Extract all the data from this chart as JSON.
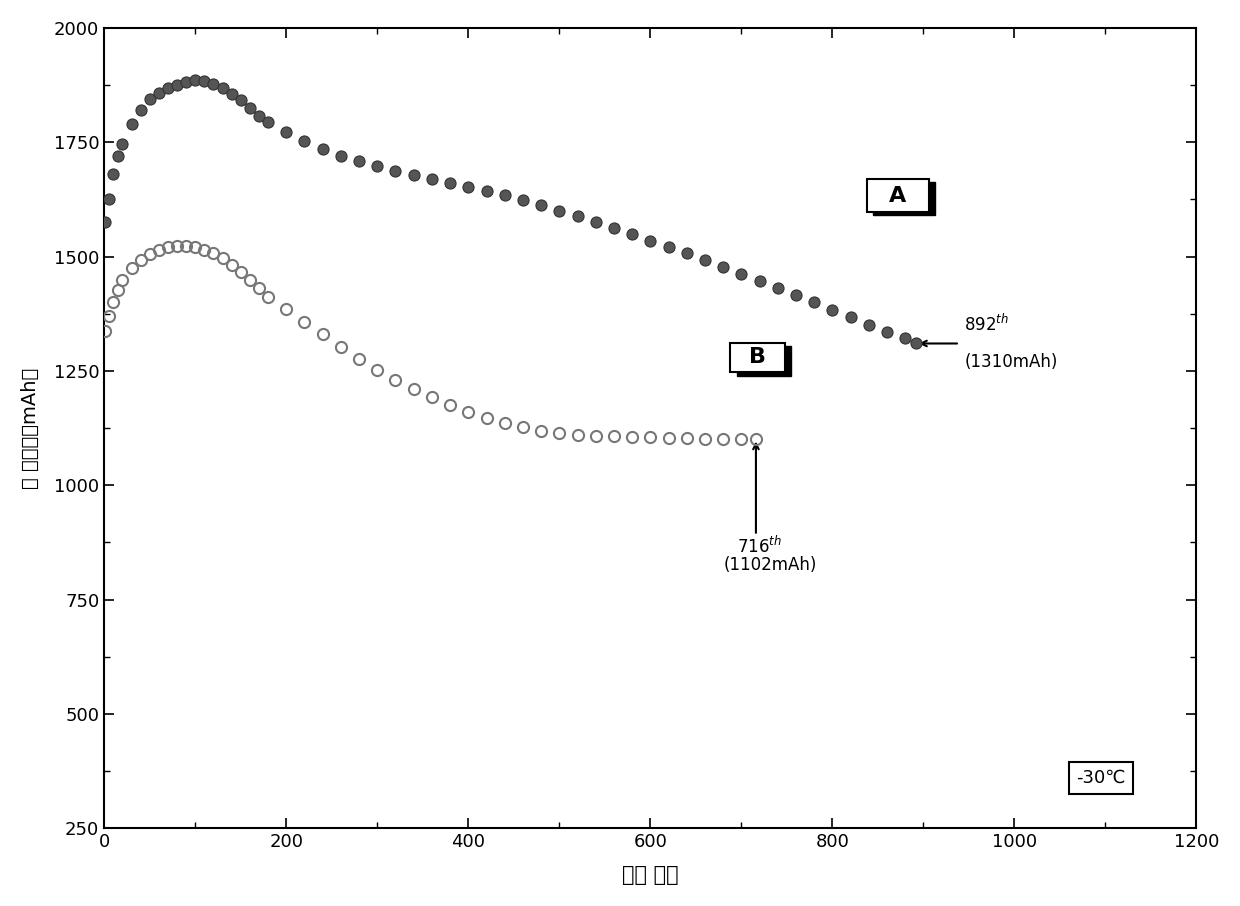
{
  "title": "",
  "xlabel": "循环 次数",
  "ylabel": "放 电容量（mAh）",
  "xlim": [
    0,
    1200
  ],
  "ylim": [
    250,
    2000
  ],
  "xticks": [
    0,
    200,
    400,
    600,
    800,
    1000,
    1200
  ],
  "yticks": [
    250,
    500,
    750,
    1000,
    1250,
    1500,
    1750,
    2000
  ],
  "background_color": "#ffffff",
  "plot_bg_color": "#ffffff",
  "temperature_label": "-30℃",
  "series_A": {
    "x": [
      1,
      5,
      10,
      15,
      20,
      30,
      40,
      50,
      60,
      70,
      80,
      90,
      100,
      110,
      120,
      130,
      140,
      150,
      160,
      170,
      180,
      200,
      220,
      240,
      260,
      280,
      300,
      320,
      340,
      360,
      380,
      400,
      420,
      440,
      460,
      480,
      500,
      520,
      540,
      560,
      580,
      600,
      620,
      640,
      660,
      680,
      700,
      720,
      740,
      760,
      780,
      800,
      820,
      840,
      860,
      880,
      892
    ],
    "y": [
      1575,
      1625,
      1680,
      1720,
      1745,
      1790,
      1820,
      1845,
      1858,
      1868,
      1876,
      1881,
      1885,
      1884,
      1878,
      1868,
      1855,
      1842,
      1825,
      1808,
      1795,
      1772,
      1752,
      1736,
      1720,
      1708,
      1697,
      1687,
      1678,
      1670,
      1661,
      1653,
      1644,
      1634,
      1623,
      1612,
      1600,
      1588,
      1575,
      1562,
      1549,
      1535,
      1521,
      1507,
      1492,
      1477,
      1462,
      1446,
      1431,
      1416,
      1400,
      1384,
      1368,
      1351,
      1336,
      1322,
      1310
    ],
    "marker": "o",
    "color": "#555555",
    "markersize": 8,
    "label": "A",
    "fillstyle": "full"
  },
  "series_B": {
    "x": [
      1,
      5,
      10,
      15,
      20,
      30,
      40,
      50,
      60,
      70,
      80,
      90,
      100,
      110,
      120,
      130,
      140,
      150,
      160,
      170,
      180,
      200,
      220,
      240,
      260,
      280,
      300,
      320,
      340,
      360,
      380,
      400,
      420,
      440,
      460,
      480,
      500,
      520,
      540,
      560,
      580,
      600,
      620,
      640,
      660,
      680,
      700,
      716
    ],
    "y": [
      1338,
      1370,
      1400,
      1428,
      1448,
      1476,
      1493,
      1505,
      1515,
      1520,
      1524,
      1524,
      1520,
      1514,
      1507,
      1496,
      1482,
      1466,
      1449,
      1431,
      1412,
      1386,
      1357,
      1330,
      1302,
      1276,
      1252,
      1230,
      1210,
      1192,
      1175,
      1160,
      1147,
      1136,
      1127,
      1119,
      1114,
      1110,
      1108,
      1107,
      1106,
      1105,
      1104,
      1103,
      1102,
      1102,
      1102,
      1102
    ],
    "marker": "o",
    "color": "#888888",
    "markersize": 8,
    "label": "B",
    "fillstyle": "none"
  }
}
